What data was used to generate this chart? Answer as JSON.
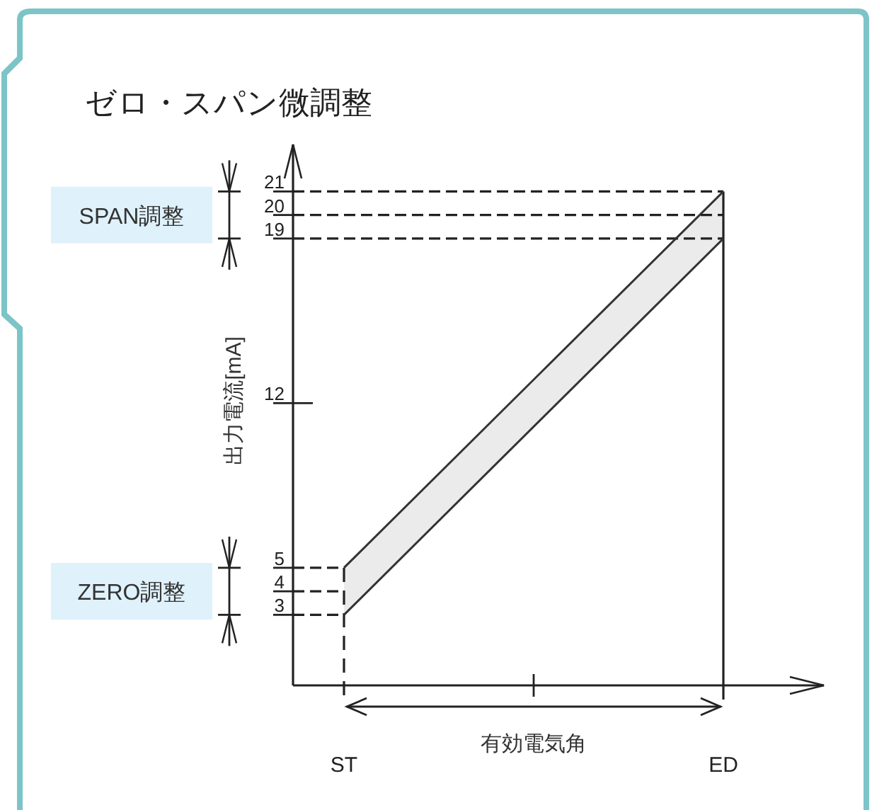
{
  "chart_data": {
    "type": "line",
    "title": "ゼロ・スパン微調整",
    "ylabel": "出力電流[mA]",
    "xlabel": "有効電気角",
    "categories": [
      "ST",
      "ED"
    ],
    "series": [
      {
        "color": "#333333",
        "values": [
          3,
          19
        ]
      },
      {
        "color": "#333333",
        "values": [
          5,
          21
        ],
        "lower": [
          3,
          19
        ],
        "upper": [
          5,
          21
        ]
      }
    ],
    "ylim": [
      0,
      23
    ],
    "yticks": [
      3,
      4,
      5,
      12,
      19,
      20,
      21
    ],
    "line_style": "solid",
    "ref_lines": [
      {
        "axis": "y",
        "value": 3,
        "line_style": "dashed"
      },
      {
        "axis": "y",
        "value": 4,
        "line_style": "dashed"
      },
      {
        "axis": "y",
        "value": 5,
        "line_style": "dashed"
      },
      {
        "axis": "y",
        "value": 19,
        "line_style": "dashed"
      },
      {
        "axis": "y",
        "value": 20,
        "line_style": "dashed"
      },
      {
        "axis": "y",
        "value": 21,
        "line_style": "dashed"
      },
      {
        "axis": "x",
        "value": "ST",
        "line_style": "dashed"
      },
      {
        "axis": "x",
        "value": "ED",
        "line_style": "solid"
      }
    ],
    "annotations": [
      "SPAN調整",
      "ZERO調整"
    ]
  }
}
